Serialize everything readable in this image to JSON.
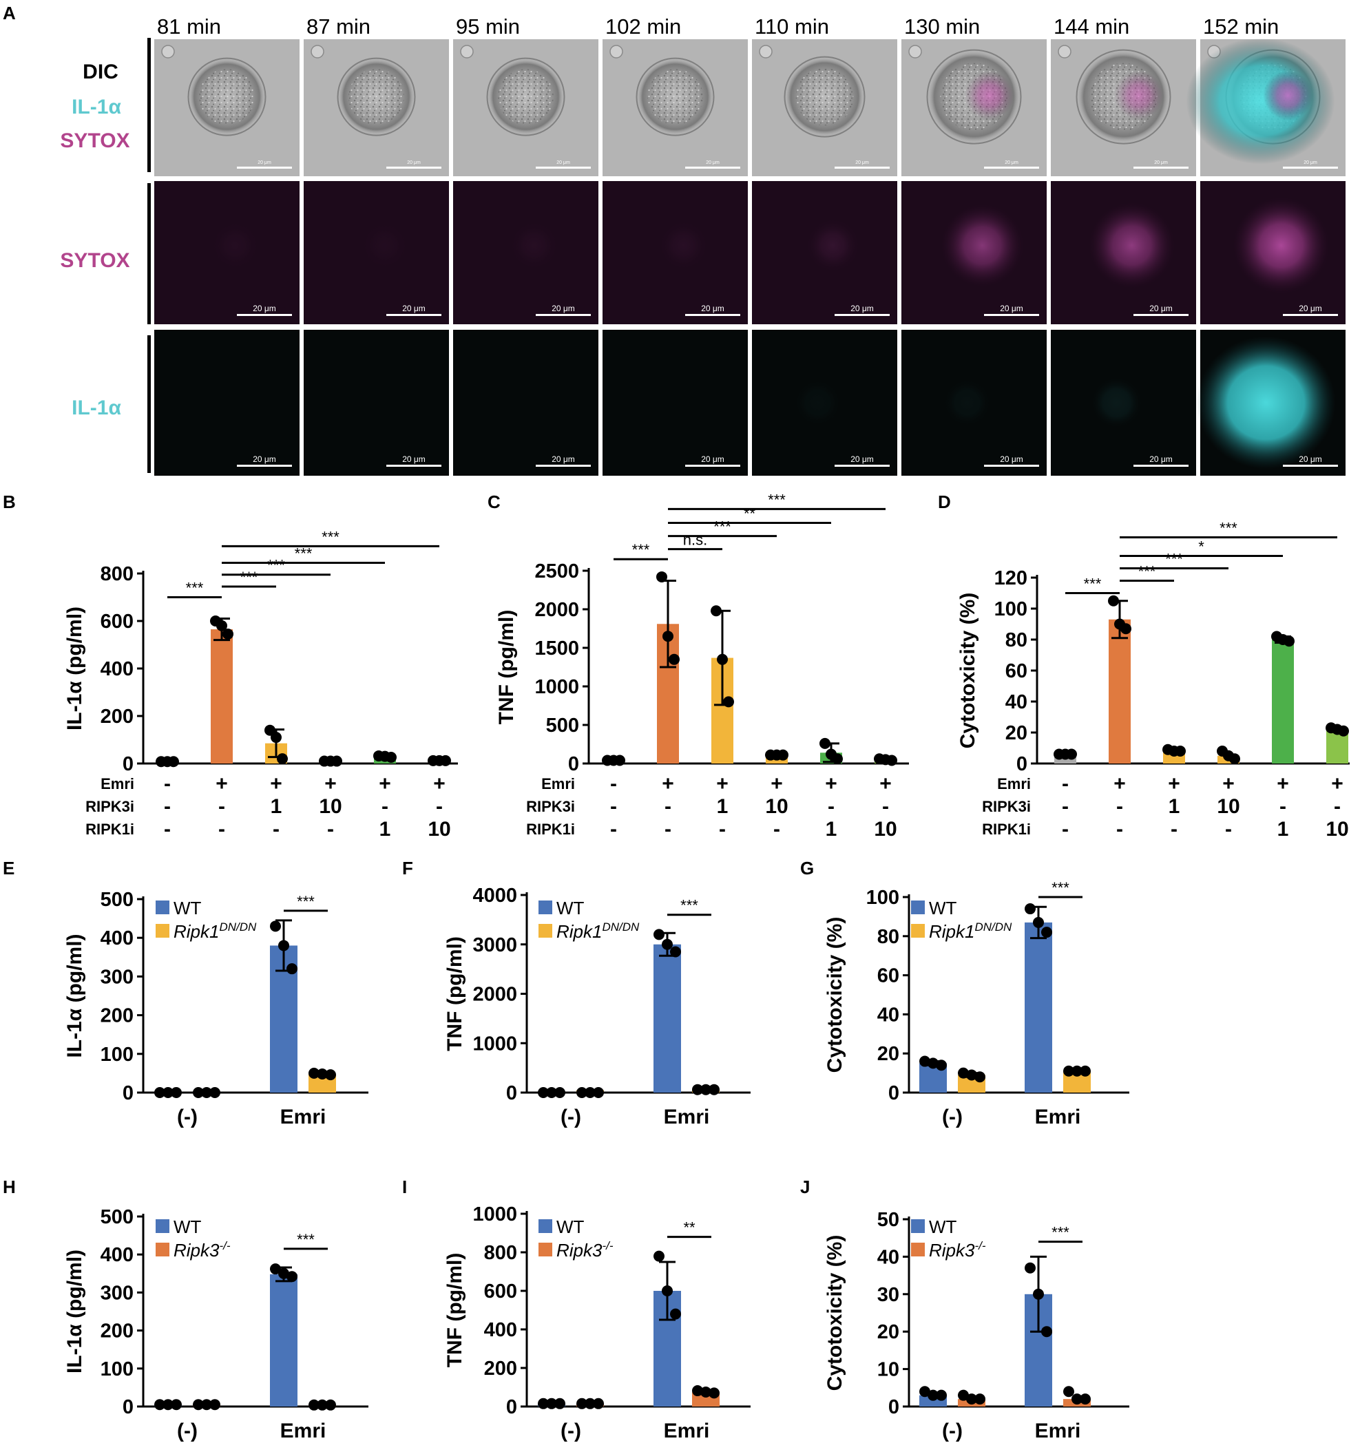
{
  "colors": {
    "emri": "#E07A3F",
    "ripk3i": "#F2B53A",
    "ripk1i_1": "#4DB04A",
    "ripk1i_10": "#8BC34A",
    "wt": "#4A74B8",
    "ripk1dn": "#F2B53A",
    "ripk3ko": "#E07A3F",
    "cyan": "#5FC9CF",
    "magenta": "#B2448C",
    "ctrl": "#AAAAAA"
  },
  "panelA": {
    "letter": "A",
    "times": [
      "81 min",
      "87 min",
      "95 min",
      "102 min",
      "110 min",
      "130 min",
      "144 min",
      "152 min"
    ],
    "row_labels": [
      "DIC",
      "IL-1α",
      "SYTOX",
      "SYTOX",
      "IL-1α"
    ],
    "scalebar": "20 μm",
    "sytox_level": [
      0.04,
      0.03,
      0.05,
      0.06,
      0.12,
      0.55,
      0.6,
      0.75
    ],
    "il1a_level": [
      0.0,
      0.0,
      0.0,
      0.0,
      0.03,
      0.04,
      0.08,
      0.95
    ],
    "dic_magenta": [
      0,
      0,
      0,
      0,
      0,
      0.6,
      0.55,
      0.75
    ],
    "dic_cyan": [
      0,
      0,
      0,
      0,
      0,
      0,
      0,
      0.9
    ]
  },
  "chart_data": [
    {
      "panel": "B",
      "type": "bar",
      "ylabel": "IL-1α (pg/ml)",
      "ylim": [
        0,
        800
      ],
      "yticks": [
        0,
        200,
        400,
        600,
        800
      ],
      "rows": [
        {
          "label": "Emri",
          "values": [
            "-",
            "+",
            "+",
            "+",
            "+",
            "+"
          ]
        },
        {
          "label": "RIPK3i",
          "values": [
            "-",
            "-",
            "1",
            "10",
            "-",
            "-"
          ]
        },
        {
          "label": "RIPK1i",
          "values": [
            "-",
            "-",
            "-",
            "-",
            "1",
            "10"
          ]
        }
      ],
      "bars": [
        {
          "value": 8,
          "err": 0,
          "color": "ctrl",
          "points": [
            8,
            8,
            8
          ]
        },
        {
          "value": 565,
          "err": 45,
          "color": "emri",
          "points": [
            600,
            580,
            545
          ]
        },
        {
          "value": 85,
          "err": 58,
          "color": "ripk3i",
          "points": [
            140,
            110,
            20
          ]
        },
        {
          "value": 10,
          "err": 0,
          "color": "ripk3i",
          "points": [
            10,
            10,
            10
          ]
        },
        {
          "value": 28,
          "err": 5,
          "color": "ripk1i_1",
          "points": [
            32,
            30,
            26
          ]
        },
        {
          "value": 12,
          "err": 0,
          "color": "ripk1i_10",
          "points": [
            12,
            12,
            12
          ]
        }
      ],
      "sig": [
        {
          "from": 0,
          "to": 1,
          "label": "***",
          "y": 700
        },
        {
          "from": 1,
          "to": 2,
          "label": "***",
          "y": 745
        },
        {
          "from": 1,
          "to": 3,
          "label": "***",
          "y": 795
        },
        {
          "from": 1,
          "to": 4,
          "label": "***",
          "y": 845
        },
        {
          "from": 1,
          "to": 5,
          "label": "***",
          "y": 915
        }
      ]
    },
    {
      "panel": "C",
      "type": "bar",
      "ylabel": "TNF (pg/ml)",
      "ylim": [
        0,
        2500
      ],
      "yticks": [
        0,
        500,
        1000,
        1500,
        2000,
        2500
      ],
      "rows": [
        {
          "label": "Emri",
          "values": [
            "-",
            "+",
            "+",
            "+",
            "+",
            "+"
          ]
        },
        {
          "label": "RIPK3i",
          "values": [
            "-",
            "-",
            "1",
            "10",
            "-",
            "-"
          ]
        },
        {
          "label": "RIPK1i",
          "values": [
            "-",
            "-",
            "-",
            "-",
            "1",
            "10"
          ]
        }
      ],
      "bars": [
        {
          "value": 40,
          "err": 0,
          "color": "ctrl",
          "points": [
            40,
            40,
            40
          ]
        },
        {
          "value": 1810,
          "err": 560,
          "color": "emri",
          "points": [
            2420,
            1650,
            1350
          ]
        },
        {
          "value": 1370,
          "err": 610,
          "color": "ripk3i",
          "points": [
            1980,
            1350,
            800
          ]
        },
        {
          "value": 110,
          "err": 10,
          "color": "ripk3i",
          "points": [
            110,
            110,
            110
          ]
        },
        {
          "value": 140,
          "err": 120,
          "color": "ripk1i_1",
          "points": [
            260,
            120,
            60
          ]
        },
        {
          "value": 50,
          "err": 0,
          "color": "ripk1i_10",
          "points": [
            60,
            50,
            40
          ]
        }
      ],
      "sig": [
        {
          "from": 0,
          "to": 1,
          "label": "***",
          "y": 2650
        },
        {
          "from": 1,
          "to": 2,
          "label": "n.s.",
          "y": 2780
        },
        {
          "from": 1,
          "to": 3,
          "label": "***",
          "y": 2950
        },
        {
          "from": 1,
          "to": 4,
          "label": "**",
          "y": 3120
        },
        {
          "from": 1,
          "to": 5,
          "label": "***",
          "y": 3300
        }
      ]
    },
    {
      "panel": "D",
      "type": "bar",
      "ylabel": "Cytotoxicity (%)",
      "ylim": [
        0,
        120
      ],
      "yticks": [
        0,
        20,
        40,
        60,
        80,
        100,
        120
      ],
      "rows": [
        {
          "label": "Emri",
          "values": [
            "-",
            "+",
            "+",
            "+",
            "+",
            "+"
          ]
        },
        {
          "label": "RIPK3i",
          "values": [
            "-",
            "-",
            "1",
            "10",
            "-",
            "-"
          ]
        },
        {
          "label": "RIPK1i",
          "values": [
            "-",
            "-",
            "-",
            "-",
            "1",
            "10"
          ]
        }
      ],
      "bars": [
        {
          "value": 6,
          "err": 0,
          "color": "ctrl",
          "points": [
            6,
            6,
            6
          ]
        },
        {
          "value": 93,
          "err": 12,
          "color": "emri",
          "points": [
            105,
            90,
            87
          ]
        },
        {
          "value": 8,
          "err": 0,
          "color": "ripk3i",
          "points": [
            9,
            8,
            8
          ]
        },
        {
          "value": 5,
          "err": 0,
          "color": "ripk3i",
          "points": [
            8,
            5,
            3
          ]
        },
        {
          "value": 80,
          "err": 2,
          "color": "ripk1i_1",
          "points": [
            82,
            80,
            79
          ]
        },
        {
          "value": 22,
          "err": 1,
          "color": "ripk1i_10",
          "points": [
            23,
            22,
            21
          ]
        }
      ],
      "sig": [
        {
          "from": 0,
          "to": 1,
          "label": "***",
          "y": 110
        },
        {
          "from": 1,
          "to": 2,
          "label": "***",
          "y": 118
        },
        {
          "from": 1,
          "to": 3,
          "label": "***",
          "y": 126
        },
        {
          "from": 1,
          "to": 4,
          "label": "*",
          "y": 134
        },
        {
          "from": 1,
          "to": 5,
          "label": "***",
          "y": 146
        }
      ]
    },
    {
      "panel": "E",
      "type": "bar",
      "ylabel": "IL-1α (pg/ml)",
      "ylim": [
        0,
        500
      ],
      "yticks": [
        0,
        100,
        200,
        300,
        400,
        500
      ],
      "categories": [
        "(-)",
        "Emri"
      ],
      "legend": [
        {
          "name": "WT",
          "color": "wt"
        },
        {
          "name": "Ripk1",
          "sup": "DN/DN",
          "color": "ripk1dn"
        }
      ],
      "series": [
        {
          "name": "WT",
          "color": "wt",
          "values": [
            0,
            380
          ],
          "err": [
            0,
            65
          ],
          "points": [
            [
              0,
              0,
              0
            ],
            [
              430,
              380,
              320
            ]
          ]
        },
        {
          "name": "Ripk1 DN/DN",
          "color": "ripk1dn",
          "values": [
            0,
            47
          ],
          "err": [
            0,
            0
          ],
          "points": [
            [
              0,
              0,
              0
            ],
            [
              50,
              48,
              46
            ]
          ]
        }
      ],
      "sig": {
        "group": 1,
        "label": "***",
        "y": 470
      }
    },
    {
      "panel": "F",
      "type": "bar",
      "ylabel": "TNF (pg/ml)",
      "ylim": [
        0,
        4000
      ],
      "yticks": [
        0,
        1000,
        2000,
        3000,
        4000
      ],
      "categories": [
        "(-)",
        "Emri"
      ],
      "legend": [
        {
          "name": "WT",
          "color": "wt"
        },
        {
          "name": "Ripk1",
          "sup": "DN/DN",
          "color": "ripk1dn"
        }
      ],
      "series": [
        {
          "name": "WT",
          "color": "wt",
          "values": [
            0,
            3000
          ],
          "err": [
            0,
            230
          ],
          "points": [
            [
              0,
              0,
              0
            ],
            [
              3200,
              3000,
              2850
            ]
          ]
        },
        {
          "name": "Ripk1 DN/DN",
          "color": "ripk1dn",
          "values": [
            50,
            60
          ],
          "err": [
            0,
            0
          ],
          "points": [
            [
              0,
              0,
              0
            ],
            [
              60,
              60,
              60
            ]
          ]
        }
      ],
      "sig": {
        "group": 1,
        "label": "***",
        "y": 3600
      }
    },
    {
      "panel": "G",
      "type": "bar",
      "ylabel": "Cytotoxicity (%)",
      "ylim": [
        0,
        100
      ],
      "yticks": [
        0,
        20,
        40,
        60,
        80,
        100
      ],
      "categories": [
        "(-)",
        "Emri"
      ],
      "legend": [
        {
          "name": "WT",
          "color": "wt"
        },
        {
          "name": "Ripk1",
          "sup": "DN/DN",
          "color": "ripk1dn"
        }
      ],
      "series": [
        {
          "name": "WT",
          "color": "wt",
          "values": [
            15,
            87
          ],
          "err": [
            1,
            8
          ],
          "points": [
            [
              16,
              15,
              14
            ],
            [
              94,
              87,
              82
            ]
          ]
        },
        {
          "name": "Ripk1 DN/DN",
          "color": "ripk1dn",
          "values": [
            9,
            11
          ],
          "err": [
            1,
            0
          ],
          "points": [
            [
              10,
              9,
              8
            ],
            [
              11,
              11,
              11
            ]
          ]
        }
      ],
      "sig": {
        "group": 1,
        "label": "***",
        "y": 100
      }
    },
    {
      "panel": "H",
      "type": "bar",
      "ylabel": "IL-1α (pg/ml)",
      "ylim": [
        0,
        500
      ],
      "yticks": [
        0,
        100,
        200,
        300,
        400,
        500
      ],
      "categories": [
        "(-)",
        "Emri"
      ],
      "legend": [
        {
          "name": "WT",
          "color": "wt"
        },
        {
          "name": "Ripk3",
          "sup": "-/-",
          "color": "ripk3ko"
        }
      ],
      "series": [
        {
          "name": "WT",
          "color": "wt",
          "values": [
            5,
            348
          ],
          "err": [
            0,
            18
          ],
          "points": [
            [
              5,
              5,
              5
            ],
            [
              362,
              350,
              342
            ]
          ]
        },
        {
          "name": "Ripk3 -/-",
          "color": "ripk3ko",
          "values": [
            5,
            4
          ],
          "err": [
            0,
            0
          ],
          "points": [
            [
              5,
              5,
              5
            ],
            [
              4,
              4,
              4
            ]
          ]
        }
      ],
      "sig": {
        "group": 1,
        "label": "***",
        "y": 415
      }
    },
    {
      "panel": "I",
      "type": "bar",
      "ylabel": "TNF (pg/ml)",
      "ylim": [
        0,
        1000
      ],
      "yticks": [
        0,
        200,
        400,
        600,
        800,
        1000
      ],
      "categories": [
        "(-)",
        "Emri"
      ],
      "legend": [
        {
          "name": "WT",
          "color": "wt"
        },
        {
          "name": "Ripk3",
          "sup": "-/-",
          "color": "ripk3ko"
        }
      ],
      "series": [
        {
          "name": "WT",
          "color": "wt",
          "values": [
            15,
            600
          ],
          "err": [
            0,
            150
          ],
          "points": [
            [
              15,
              15,
              15
            ],
            [
              780,
              600,
              480
            ]
          ]
        },
        {
          "name": "Ripk3 -/-",
          "color": "ripk3ko",
          "values": [
            15,
            75
          ],
          "err": [
            0,
            10
          ],
          "points": [
            [
              15,
              15,
              15
            ],
            [
              82,
              75,
              70
            ]
          ]
        }
      ],
      "sig": {
        "group": 1,
        "label": "**",
        "y": 880
      }
    },
    {
      "panel": "J",
      "type": "bar",
      "ylabel": "Cytotoxicity (%)",
      "ylim": [
        0,
        50
      ],
      "yticks": [
        0,
        10,
        20,
        30,
        40,
        50
      ],
      "categories": [
        "(-)",
        "Emri"
      ],
      "legend": [
        {
          "name": "WT",
          "color": "wt"
        },
        {
          "name": "Ripk3",
          "sup": "-/-",
          "color": "ripk3ko"
        }
      ],
      "series": [
        {
          "name": "WT",
          "color": "wt",
          "values": [
            3,
            30
          ],
          "err": [
            0,
            10
          ],
          "points": [
            [
              4,
              3,
              3
            ],
            [
              37,
              30,
              20
            ]
          ]
        },
        {
          "name": "Ripk3 -/-",
          "color": "ripk3ko",
          "values": [
            2,
            2
          ],
          "err": [
            0,
            0
          ],
          "points": [
            [
              3,
              2,
              2
            ],
            [
              4,
              2,
              2
            ]
          ]
        }
      ],
      "sig": {
        "group": 1,
        "label": "***",
        "y": 44
      }
    }
  ]
}
